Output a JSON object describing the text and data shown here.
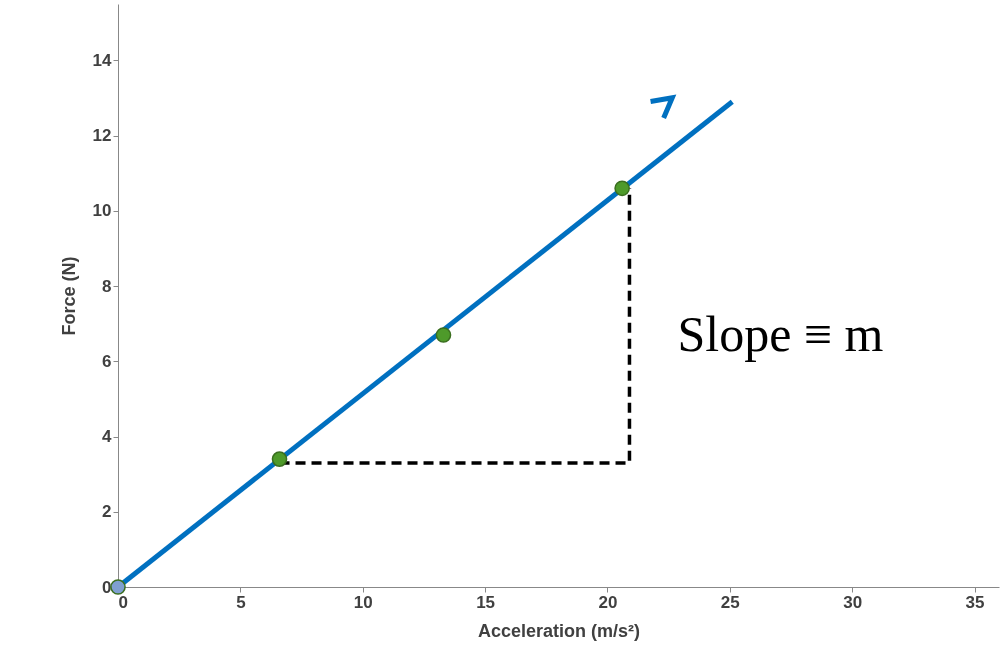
{
  "chart_data": {
    "type": "line",
    "xlabel": "Acceleration (m/s²)",
    "ylabel": "Force (N)",
    "xlim": [
      0,
      36
    ],
    "ylim": [
      0,
      15.5
    ],
    "xticks": [
      0,
      5,
      10,
      15,
      20,
      25,
      30,
      35
    ],
    "yticks": [
      0,
      2,
      4,
      6,
      8,
      10,
      12,
      14
    ],
    "grid": false,
    "series": [
      {
        "color": "#0070c0",
        "x": [
          0,
          25.1
        ],
        "values": [
          0,
          12.9
        ]
      },
      {
        "color": "#000000",
        "line_style": "dashed",
        "x": [
          6.6,
          20.9,
          20.9
        ],
        "values": [
          3.3,
          3.3,
          10.6
        ]
      },
      {
        "type": "scatter",
        "marker": "circle",
        "colors": [
          "#7f9fd0",
          "#4e9a2a",
          "#4e9a2a",
          "#4e9a2a"
        ],
        "x": [
          0,
          6.6,
          13.3,
          20.6
        ],
        "values": [
          0,
          3.4,
          6.7,
          10.6
        ]
      }
    ],
    "annotations": [
      "Slope ≡ m"
    ]
  }
}
